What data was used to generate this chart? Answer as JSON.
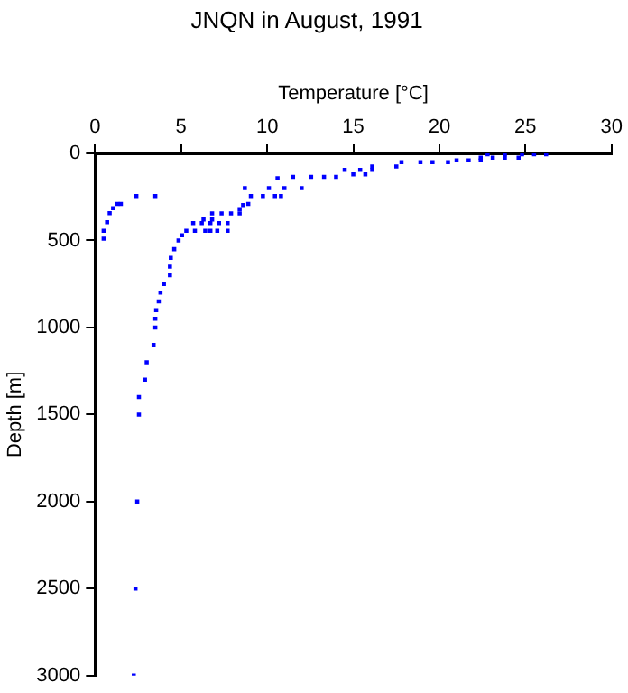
{
  "chart_data": {
    "type": "scatter",
    "title": "JNQN in August, 1991",
    "xlabel": "Temperature [°C]",
    "ylabel": "Depth [m]",
    "xlim": [
      0,
      30
    ],
    "xticks": [
      0,
      5,
      10,
      15,
      20,
      25,
      30
    ],
    "ylim": [
      3000,
      0
    ],
    "yticks": [
      0,
      500,
      1000,
      1500,
      2000,
      2500,
      3000
    ],
    "grid": false,
    "legend": false,
    "marker": "square",
    "series": [
      {
        "color": "#0000ff",
        "x": [
          0.5,
          0.5,
          0.7,
          0.85,
          1.05,
          1.3,
          1.5,
          2.4,
          3.5,
          2.25,
          2.35,
          2.45,
          2.55,
          2.55,
          2.9,
          3.0,
          3.4,
          3.5,
          3.5,
          3.55,
          3.7,
          3.8,
          4.0,
          4.35,
          4.35,
          4.4,
          4.6,
          4.85,
          5.05,
          5.3,
          5.8,
          6.4,
          6.7,
          7.1,
          7.7,
          5.7,
          6.2,
          6.7,
          7.2,
          7.7,
          6.3,
          6.8,
          6.8,
          7.35,
          7.9,
          8.4,
          8.4,
          8.6,
          8.9,
          9.05,
          9.75,
          10.45,
          10.8,
          8.7,
          10.1,
          11.0,
          12.0,
          10.6,
          11.5,
          12.55,
          13.3,
          14.0,
          15.0,
          15.7,
          14.5,
          15.4,
          16.1,
          16.1,
          17.5,
          17.8,
          18.9,
          19.6,
          20.5,
          21.0,
          21.7,
          22.4,
          22.4,
          23.1,
          23.8,
          24.6,
          22.8,
          23.8,
          24.8,
          25.5,
          26.2
        ],
        "values": [
          490,
          445,
          395,
          343,
          315,
          290,
          290,
          245,
          245,
          3000,
          2500,
          2000,
          1500,
          1400,
          1300,
          1200,
          1100,
          1000,
          950,
          900,
          850,
          800,
          750,
          700,
          650,
          600,
          550,
          500,
          470,
          445,
          445,
          445,
          445,
          445,
          445,
          400,
          400,
          400,
          400,
          400,
          380,
          380,
          345,
          345,
          345,
          345,
          320,
          297,
          290,
          245,
          245,
          245,
          245,
          200,
          200,
          200,
          200,
          143,
          135,
          135,
          135,
          135,
          120,
          120,
          95,
          95,
          95,
          75,
          75,
          50,
          50,
          50,
          50,
          40,
          40,
          40,
          25,
          25,
          25,
          25,
          5,
          5,
          5,
          5,
          5
        ]
      }
    ]
  }
}
